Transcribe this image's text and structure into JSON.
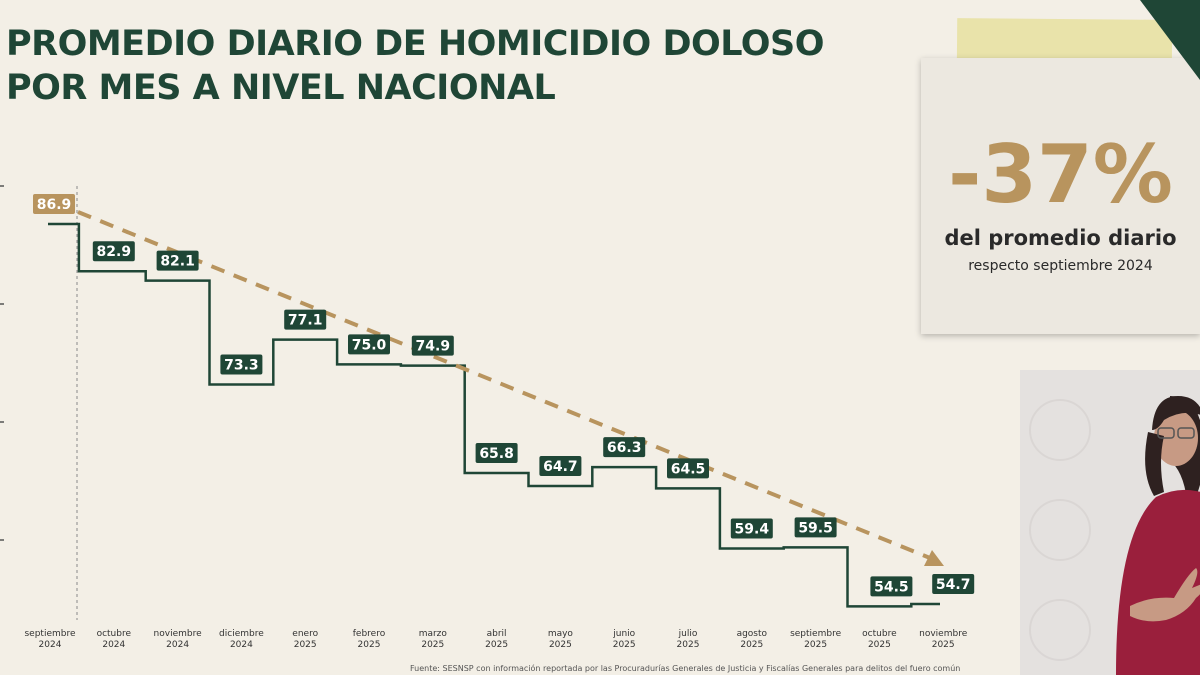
{
  "title": "PROMEDIO DIARIO DE HOMICIDIO DOLOSO\nPOR MES A NIVEL NACIONAL",
  "stat": {
    "value": "-37%",
    "line1": "del promedio diario",
    "line2": "respecto septiembre 2024"
  },
  "source_note": "Fuente: SESNSP con información reportada por las Procuradurías Generales de Justicia y Fiscalías Generales para delitos del fuero común",
  "colors": {
    "line": "#1f4636",
    "label_bg": "#1f4636",
    "first_label_bg": "#b8945e",
    "trend": "#b8945e",
    "accent_text": "#b8945e"
  },
  "chart_data": {
    "type": "line",
    "step": true,
    "title": "PROMEDIO DIARIO DE HOMICIDIO DOLOSO POR MES A NIVEL NACIONAL",
    "categories": [
      [
        "septiembre",
        "2024"
      ],
      [
        "octubre",
        "2024"
      ],
      [
        "noviembre",
        "2024"
      ],
      [
        "diciembre",
        "2024"
      ],
      [
        "enero",
        "2025"
      ],
      [
        "febrero",
        "2025"
      ],
      [
        "marzo",
        "2025"
      ],
      [
        "abril",
        "2025"
      ],
      [
        "mayo",
        "2025"
      ],
      [
        "junio",
        "2025"
      ],
      [
        "julio",
        "2025"
      ],
      [
        "agosto",
        "2025"
      ],
      [
        "septiembre",
        "2025"
      ],
      [
        "octubre",
        "2025"
      ],
      [
        "noviembre",
        "2025"
      ]
    ],
    "values": [
      86.9,
      82.9,
      82.1,
      73.3,
      77.1,
      75.0,
      74.9,
      65.8,
      64.7,
      66.3,
      64.5,
      59.4,
      59.5,
      54.5,
      54.7
    ],
    "value_labels": [
      "86.9",
      "82.9",
      "82.1",
      "73.3",
      "77.1",
      "75.0",
      "74.9",
      "65.8",
      "64.7",
      "66.3",
      "64.5",
      "59.4",
      "59.5",
      "54.5",
      "54.7"
    ],
    "ylim": [
      50,
      90
    ],
    "trend_line": {
      "from_value": 86.9,
      "to_value": 54.7,
      "style": "dashed-arrow"
    },
    "reference_line": {
      "category_index": 0,
      "style": "dashed-vertical"
    },
    "grid": false,
    "legend": "none"
  }
}
